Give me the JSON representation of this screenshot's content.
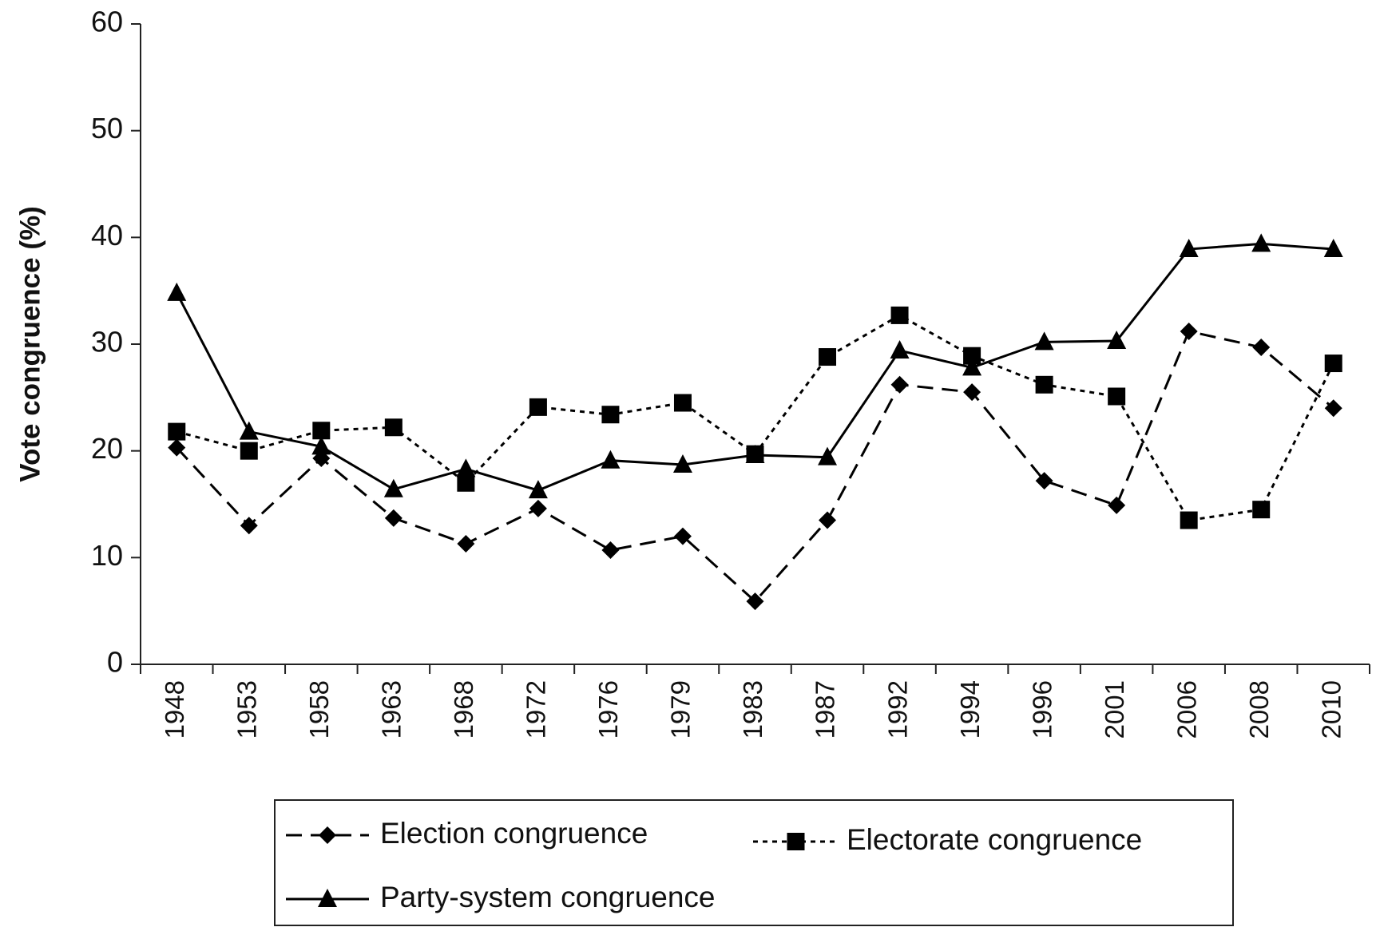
{
  "chart_data": {
    "type": "line",
    "y_label": "Vote congruence (%)",
    "categories": [
      "1948",
      "1953",
      "1958",
      "1963",
      "1968",
      "1972",
      "1976",
      "1979",
      "1983",
      "1987",
      "1992",
      "1994",
      "1996",
      "2001",
      "2006",
      "2008",
      "2010"
    ],
    "series": [
      {
        "name": "Election congruence",
        "color": "#000000",
        "marker": "diamond",
        "dash": "long",
        "values": [
          20.3,
          13,
          19.3,
          13.7,
          11.3,
          14.6,
          10.7,
          12,
          5.9,
          13.5,
          26.2,
          25.5,
          17.2,
          14.9,
          31.2,
          29.7,
          24
        ]
      },
      {
        "name": "Electorate congruence",
        "color": "#000000",
        "marker": "square",
        "dash": "short",
        "values": [
          21.8,
          20,
          21.9,
          22.2,
          17,
          24.1,
          23.4,
          24.5,
          19.7,
          28.8,
          32.7,
          28.9,
          26.2,
          25.1,
          13.5,
          14.5,
          28.2
        ]
      },
      {
        "name": "Party-system congruence",
        "color": "#000000",
        "marker": "triangle",
        "dash": "solid",
        "values": [
          34.8,
          21.8,
          20.4,
          16.4,
          18.3,
          16.3,
          19.1,
          18.7,
          19.6,
          19.4,
          29.4,
          27.8,
          30.2,
          30.3,
          38.9,
          39.4,
          38.9
        ]
      }
    ],
    "ylim": [
      0,
      60
    ],
    "yticks": [
      0,
      10,
      20,
      30,
      40,
      50,
      60
    ],
    "grid": false
  }
}
